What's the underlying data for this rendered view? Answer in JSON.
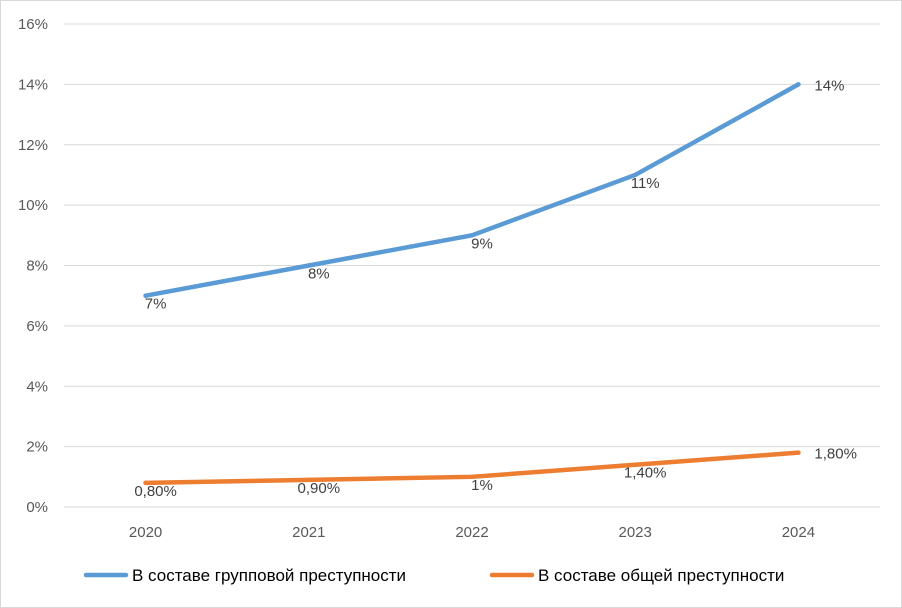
{
  "chart_data": {
    "type": "line",
    "title": "",
    "xlabel": "",
    "ylabel": "",
    "categories": [
      "2020",
      "2021",
      "2022",
      "2023",
      "2024"
    ],
    "ylim": [
      0,
      16
    ],
    "y_ticks": [
      0,
      2,
      4,
      6,
      8,
      10,
      12,
      14,
      16
    ],
    "y_tick_labels": [
      "0%",
      "2%",
      "4%",
      "6%",
      "8%",
      "10%",
      "12%",
      "14%",
      "16%"
    ],
    "grid": "horizontal",
    "legend_position": "bottom",
    "series": [
      {
        "name": "В составе групповой преступности",
        "values": [
          7,
          8,
          9,
          11,
          14
        ],
        "labels": [
          "7%",
          "8%",
          "9%",
          "11%",
          "14%"
        ],
        "color": "#5b9bd5"
      },
      {
        "name": "В составе общей преступности",
        "values": [
          0.8,
          0.9,
          1,
          1.4,
          1.8
        ],
        "labels": [
          "0,80%",
          "0,90%",
          "1%",
          "1,40%",
          "1,80%"
        ],
        "color": "#ed7d31"
      }
    ]
  }
}
